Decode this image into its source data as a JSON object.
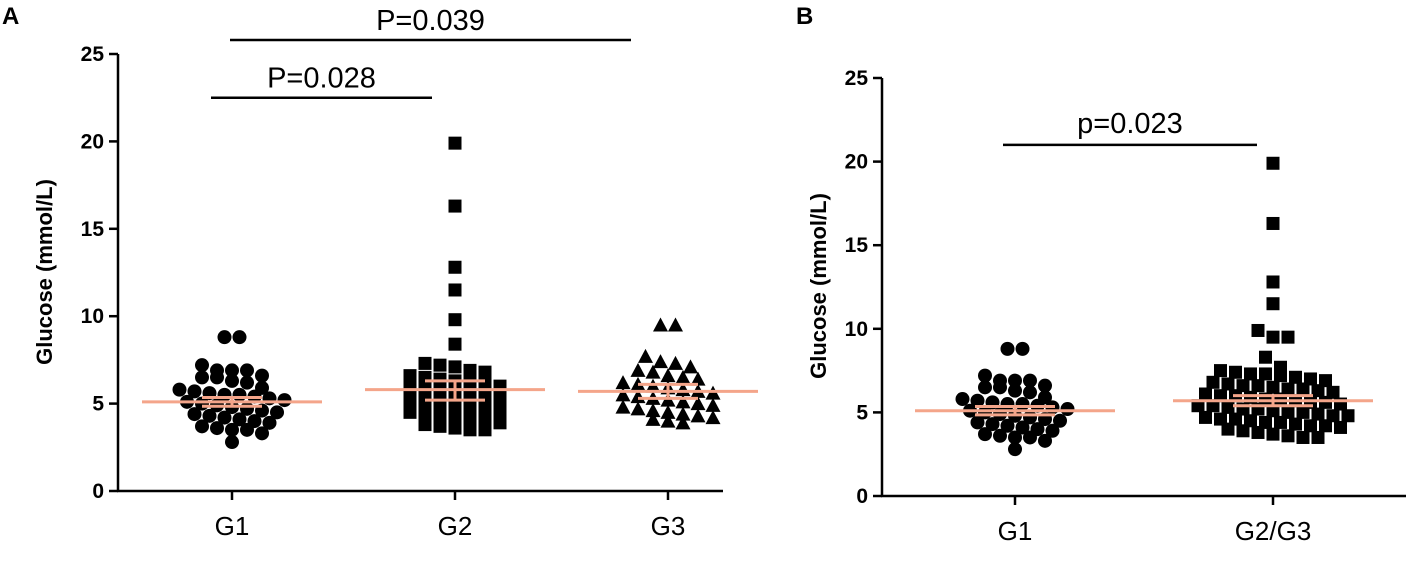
{
  "colors": {
    "points": "#000000",
    "mean_sem": "#f4a58a",
    "background": "#ffffff"
  },
  "chart_data": [
    {
      "panel": "A",
      "type": "scatter",
      "title": "",
      "xlabel": "",
      "ylabel": "Glucose (mmol/L)",
      "ylim": [
        0,
        25
      ],
      "yticks": [
        "0",
        "5",
        "10",
        "15",
        "20",
        "25"
      ],
      "categories": [
        "G1",
        "G2",
        "G3"
      ],
      "series": [
        {
          "name": "G1",
          "marker": "circle",
          "mean": 5.1,
          "sem": [
            4.85,
            5.35
          ],
          "values": [
            8.8,
            8.8,
            7.2,
            6.9,
            6.9,
            6.9,
            6.6,
            6.5,
            6.5,
            6.3,
            6.2,
            5.9,
            5.8,
            5.7,
            5.6,
            5.5,
            5.5,
            5.4,
            5.3,
            5.2,
            5.1,
            5.0,
            4.9,
            4.8,
            4.7,
            4.6,
            4.5,
            4.4,
            4.3,
            4.2,
            4.1,
            4.0,
            3.9,
            3.7,
            3.6,
            3.5,
            3.5,
            3.3,
            2.8
          ]
        },
        {
          "name": "G2",
          "marker": "square",
          "mean": 5.8,
          "sem": [
            5.2,
            6.3
          ],
          "values": [
            19.9,
            16.3,
            12.8,
            11.5,
            9.8,
            8.4,
            7.3,
            7.2,
            7.1,
            6.9,
            6.8,
            6.6,
            6.5,
            6.4,
            6.3,
            6.2,
            6.1,
            6.0,
            5.9,
            5.8,
            5.7,
            5.6,
            5.5,
            5.4,
            5.3,
            5.2,
            5.1,
            5.0,
            4.9,
            4.8,
            4.7,
            4.6,
            4.5,
            4.4,
            4.3,
            4.2,
            4.1,
            4.0,
            3.9,
            3.8,
            3.7,
            3.6,
            3.5,
            3.5
          ]
        },
        {
          "name": "G3",
          "marker": "triangle",
          "mean": 5.7,
          "sem": [
            5.3,
            6.1
          ],
          "values": [
            9.5,
            9.5,
            7.7,
            7.4,
            7.3,
            7.1,
            6.9,
            6.8,
            6.6,
            6.5,
            6.4,
            6.2,
            6.1,
            6.0,
            5.9,
            5.8,
            5.7,
            5.6,
            5.5,
            5.4,
            5.3,
            5.2,
            5.1,
            5.0,
            4.9,
            4.8,
            4.7,
            4.6,
            4.5,
            4.4,
            4.3,
            4.2,
            4.1,
            4.0,
            3.9
          ]
        }
      ],
      "annotations": [
        {
          "text": "P=0.028",
          "from": "G1",
          "to": "G2",
          "y": 22.5
        },
        {
          "text": "P=0.039",
          "from": "G1",
          "to": "G3",
          "y": 25.8
        }
      ]
    },
    {
      "panel": "B",
      "type": "scatter",
      "title": "",
      "xlabel": "",
      "ylabel": "Glucose (mmol/L)",
      "ylim": [
        0,
        25
      ],
      "yticks": [
        "0",
        "5",
        "10",
        "15",
        "20",
        "25"
      ],
      "categories": [
        "G1",
        "G2/G3"
      ],
      "series": [
        {
          "name": "G1",
          "marker": "circle",
          "mean": 5.1,
          "sem": [
            4.85,
            5.35
          ],
          "values": [
            8.8,
            8.8,
            7.2,
            6.9,
            6.9,
            6.9,
            6.6,
            6.5,
            6.5,
            6.3,
            6.2,
            5.9,
            5.8,
            5.7,
            5.6,
            5.5,
            5.5,
            5.4,
            5.3,
            5.2,
            5.1,
            5.0,
            4.9,
            4.8,
            4.7,
            4.6,
            4.5,
            4.4,
            4.3,
            4.2,
            4.1,
            4.0,
            3.9,
            3.7,
            3.6,
            3.5,
            3.5,
            3.3,
            2.8
          ]
        },
        {
          "name": "G2/G3",
          "marker": "square",
          "mean": 5.7,
          "sem": [
            5.4,
            6.0
          ],
          "values": [
            19.9,
            16.3,
            12.8,
            11.5,
            9.9,
            9.5,
            9.5,
            8.3,
            7.7,
            7.5,
            7.4,
            7.3,
            7.3,
            7.2,
            7.1,
            7.0,
            6.9,
            6.8,
            6.7,
            6.6,
            6.6,
            6.5,
            6.4,
            6.4,
            6.3,
            6.2,
            6.1,
            6.0,
            6.0,
            5.9,
            5.8,
            5.8,
            5.7,
            5.6,
            5.6,
            5.5,
            5.4,
            5.4,
            5.3,
            5.2,
            5.2,
            5.1,
            5.0,
            5.0,
            4.9,
            4.8,
            4.8,
            4.7,
            4.6,
            4.6,
            4.5,
            4.4,
            4.4,
            4.3,
            4.2,
            4.2,
            4.1,
            4.0,
            3.9,
            3.8,
            3.7,
            3.6,
            3.5,
            3.5
          ]
        }
      ],
      "annotations": [
        {
          "text": "p=0.023",
          "from": "G1",
          "to": "G2/G3",
          "y": 21.0
        }
      ]
    }
  ]
}
